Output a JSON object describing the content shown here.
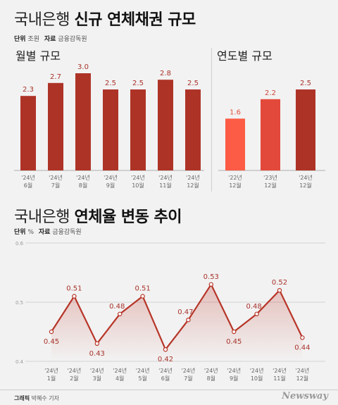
{
  "header": {
    "title_light": "국내은행",
    "title_bold": "신규 연체채권 규모",
    "unit_label": "단위",
    "unit_value": "조원",
    "source_label": "자료",
    "source_value": "금융감독원"
  },
  "section2": {
    "title_light": "국내은행",
    "title_bold": "연체율 변동 추이",
    "unit_label": "단위",
    "unit_value": "%",
    "source_label": "자료",
    "source_value": "금융감독원"
  },
  "footer": {
    "credit_label": "그래픽",
    "credit_value": "박혜수 기자",
    "logo": "Newsway"
  },
  "colors": {
    "bar_dark": "#ae3327",
    "bar_light": "#fc5b45",
    "bar_mid": "#e2493b",
    "line": "#b73528",
    "label_dark": "#a8332a"
  },
  "chart_data": [
    {
      "type": "bar",
      "title": "월별 규모",
      "categories": [
        "'24년 6월",
        "'24년 7월",
        "'24년 8월",
        "'24년 9월",
        "'24년 10월",
        "'24년 11월",
        "'24년 12월"
      ],
      "tick_line1": [
        "'24년",
        "'24년",
        "'24년",
        "'24년",
        "'24년",
        "'24년",
        "'24년"
      ],
      "tick_line2": [
        "6월",
        "7월",
        "8월",
        "9월",
        "10월",
        "11월",
        "12월"
      ],
      "values": [
        2.3,
        2.7,
        3.0,
        2.5,
        2.5,
        2.8,
        2.5
      ],
      "value_labels": [
        "2.3",
        "2.7",
        "3.0",
        "2.5",
        "2.5",
        "2.8",
        "2.5"
      ],
      "ylim": [
        0,
        3.0
      ]
    },
    {
      "type": "bar",
      "title": "연도별 규모",
      "categories": [
        "'22년 12월",
        "'23년 12월",
        "'24년 12월"
      ],
      "tick_line1": [
        "'22년",
        "'23년",
        "'24년"
      ],
      "tick_line2": [
        "12월",
        "12월",
        "12월"
      ],
      "values": [
        1.6,
        2.2,
        2.5
      ],
      "value_labels": [
        "1.6",
        "2.2",
        "2.5"
      ],
      "ylim": [
        0,
        3.0
      ]
    },
    {
      "type": "line",
      "categories": [
        "'24년 1월",
        "'24년 2월",
        "'24년 3월",
        "'24년 4월",
        "'24년 5월",
        "'24년 6월",
        "'24년 7월",
        "'24년 8월",
        "'24년 9월",
        "'24년 10월",
        "'24년 11월",
        "'24년 12월"
      ],
      "tick_line1": [
        "'24년",
        "'24년",
        "'24년",
        "'24년",
        "'24년",
        "'24년",
        "'24년",
        "'24년",
        "'24년",
        "'24년",
        "'24년",
        "'24년"
      ],
      "tick_line2": [
        "1월",
        "2월",
        "3월",
        "4월",
        "5월",
        "6월",
        "7월",
        "8월",
        "9월",
        "10월",
        "11월",
        "12월"
      ],
      "values": [
        0.45,
        0.51,
        0.43,
        0.48,
        0.51,
        0.42,
        0.47,
        0.53,
        0.45,
        0.48,
        0.52,
        0.44
      ],
      "value_labels": [
        "0.45",
        "0.51",
        "0.43",
        "0.48",
        "0.51",
        "0.42",
        "0.47",
        "0.53",
        "0.45",
        "0.48",
        "0.52",
        "0.44"
      ],
      "yticks": [
        "0.6",
        "0.5",
        "0.4"
      ],
      "ylim": [
        0.4,
        0.6
      ],
      "grid": true
    }
  ]
}
